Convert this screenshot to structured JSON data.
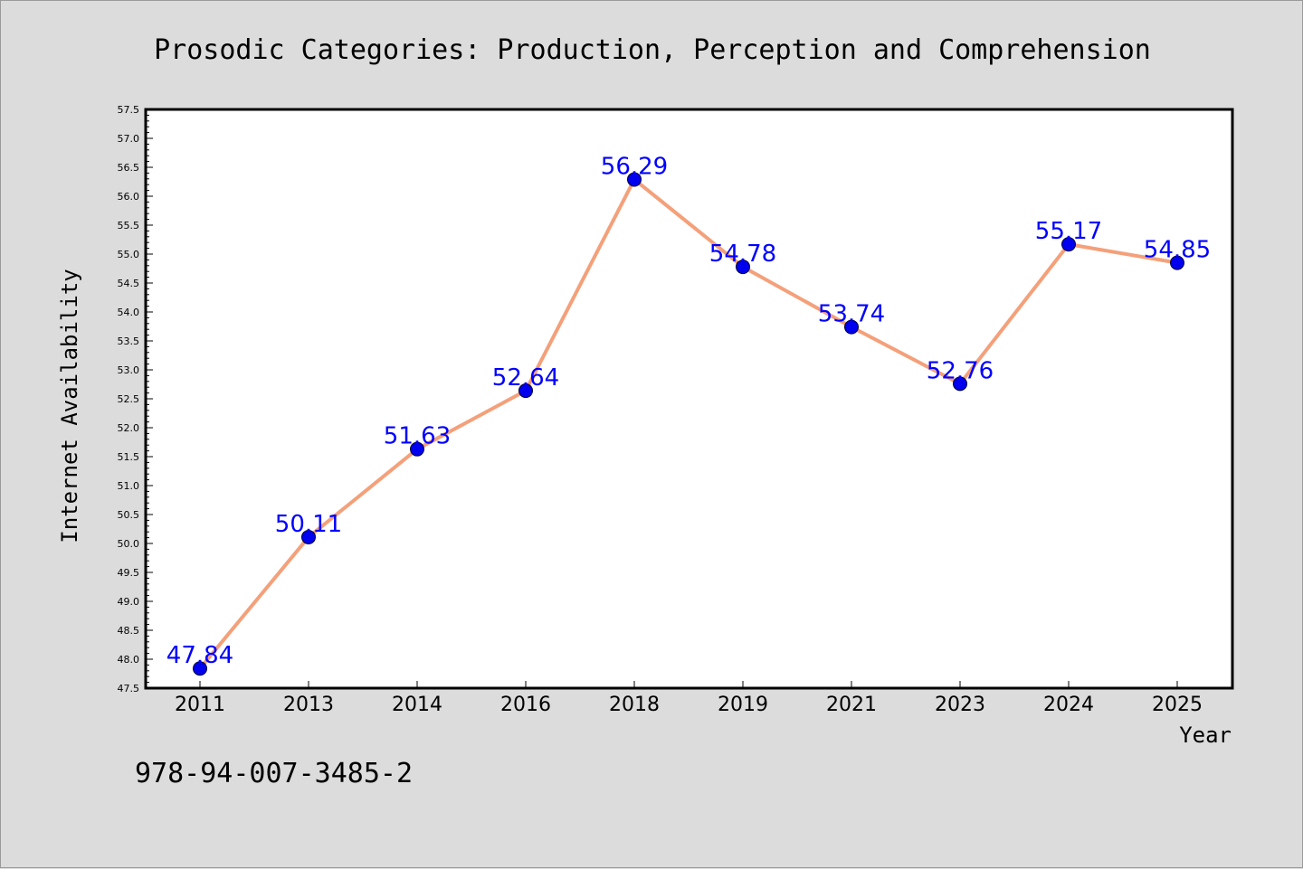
{
  "chart_data": {
    "type": "line",
    "title": "Prosodic Categories: Production, Perception and Comprehension",
    "xlabel": "Year",
    "ylabel": "Internet Availability",
    "categories": [
      "2011",
      "2013",
      "2014",
      "2016",
      "2018",
      "2019",
      "2021",
      "2023",
      "2024",
      "2025"
    ],
    "values": [
      47.84,
      50.11,
      51.63,
      52.64,
      56.29,
      54.78,
      53.74,
      52.76,
      55.17,
      54.85
    ],
    "data_labels": [
      "47.84",
      "50.11",
      "51.63",
      "52.64",
      "56.29",
      "54.78",
      "53.74",
      "52.76",
      "55.17",
      "54.85"
    ],
    "ylim": [
      47.5,
      57.5
    ],
    "y_major_step": 0.5,
    "y_minor_step": 0.1,
    "y_ticks": [
      "47.5",
      "48.0",
      "48.5",
      "49.0",
      "49.5",
      "50.0",
      "50.5",
      "51.0",
      "51.5",
      "52.0",
      "52.5",
      "53.0",
      "53.5",
      "54.0",
      "54.5",
      "55.0",
      "55.5",
      "56.0",
      "56.5",
      "57.0",
      "57.5"
    ],
    "grid": false,
    "legend": "none",
    "line_color": "#f4a07a",
    "marker_color": "#0000ee",
    "label_color": "#0000ff"
  },
  "footnote": "978-94-007-3485-2"
}
